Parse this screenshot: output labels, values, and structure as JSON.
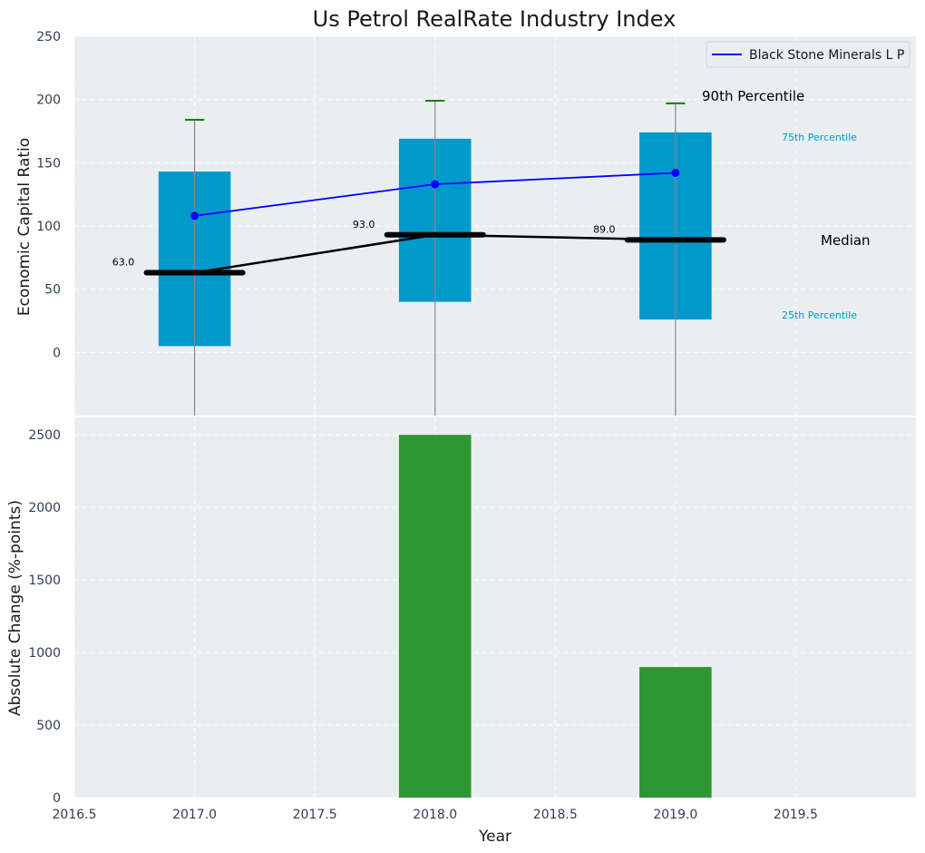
{
  "chart_data": [
    {
      "type": "box",
      "title": "Us Petrol RealRate Industry Index",
      "xlabel": "",
      "ylabel": "Economic Capital Ratio",
      "ylim": [
        -50,
        250
      ],
      "yticks": [
        0,
        50,
        100,
        150,
        200,
        250
      ],
      "xlim": [
        2016.5,
        2020.0
      ],
      "grid": true,
      "colors": {
        "box": "#0099cc",
        "whisker": "#888888",
        "p90_cap": "#008000",
        "company_line": "#0000ff",
        "median": "#000000",
        "percentile_text": "#0099cc",
        "background": "#eaeef0"
      },
      "boxes": [
        {
          "x": 2017.0,
          "p25": 5,
          "median": 63,
          "p75": 143,
          "p90": 184,
          "median_label": "63.0"
        },
        {
          "x": 2018.0,
          "p25": 40,
          "median": 93,
          "p75": 169,
          "p90": 199,
          "median_label": "93.0"
        },
        {
          "x": 2019.0,
          "p25": 26,
          "median": 89,
          "p75": 174,
          "p90": 197,
          "median_label": "89.0"
        }
      ],
      "series": [
        {
          "name": "Black Stone Minerals L P",
          "x": [
            2017.0,
            2018.0,
            2019.0
          ],
          "values": [
            108,
            133,
            142
          ]
        }
      ],
      "legend": {
        "position": "top-right",
        "entries": [
          "Black Stone Minerals L P"
        ]
      },
      "annotations": {
        "p90": "90th Percentile",
        "p75": "75th Percentile",
        "median": "Median",
        "p25": "25th Percentile"
      }
    },
    {
      "type": "bar",
      "xlabel": "Year",
      "ylabel": "Absolute Change (%-points)",
      "ylim": [
        0,
        2620
      ],
      "yticks": [
        0,
        500,
        1000,
        1500,
        2000,
        2500
      ],
      "xlim": [
        2016.5,
        2020.0
      ],
      "xticks": [
        2016.5,
        2017.0,
        2017.5,
        2018.0,
        2018.5,
        2019.0,
        2019.5
      ],
      "xtick_labels": [
        "2016.5",
        "2017.0",
        "2017.5",
        "2018.0",
        "2018.5",
        "2019.0",
        "2019.5"
      ],
      "grid": true,
      "bar_color": "#2e9632",
      "x": [
        2018.0,
        2019.0
      ],
      "values": [
        2500,
        900
      ]
    }
  ]
}
